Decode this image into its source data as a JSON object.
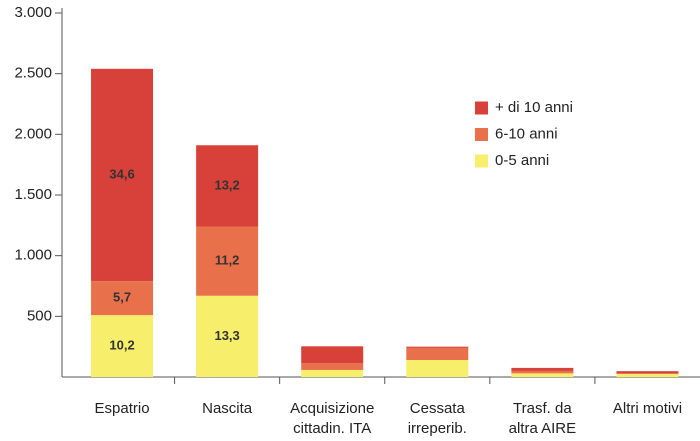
{
  "chart_data": {
    "type": "stacked-bar",
    "categories": [
      [
        "Espatrio"
      ],
      [
        "Nascita"
      ],
      [
        "Acquisizione",
        "cittadin. ITA"
      ],
      [
        "Cessata",
        "irreperib."
      ],
      [
        "Trasf. da",
        "altra AIRE"
      ],
      [
        "Altri motivi"
      ]
    ],
    "series": [
      {
        "name": "0-5 anni",
        "color": "#f7ee6b",
        "values": [
          510,
          670,
          58,
          140,
          30,
          25
        ],
        "shares": [
          10.2,
          13.3,
          null,
          null,
          null,
          null
        ],
        "share_labels": [
          "10,2",
          "13,3",
          null,
          null,
          null,
          null
        ]
      },
      {
        "name": "6-10 anni",
        "color": "#e8704a",
        "values": [
          280,
          570,
          55,
          100,
          20,
          8
        ],
        "shares": [
          5.7,
          11.2,
          null,
          null,
          null,
          null
        ],
        "share_labels": [
          "5,7",
          "11,2",
          null,
          null,
          null,
          null
        ]
      },
      {
        "name": "+ di 10 anni",
        "color": "#d8403a",
        "values": [
          1750,
          670,
          140,
          10,
          25,
          15
        ],
        "shares": [
          34.6,
          13.2,
          null,
          null,
          null,
          null
        ],
        "share_labels": [
          "34,6",
          "13,2",
          null,
          null,
          null,
          null
        ]
      }
    ],
    "ylim": [
      0,
      3000
    ],
    "yticks": [
      500,
      {
        "value": 1000,
        "label": "1.000"
      },
      {
        "value": 1500,
        "label": "1.500"
      },
      {
        "value": 2000,
        "label": "2.000"
      },
      {
        "value": 2500,
        "label": "2.500"
      },
      {
        "value": 3000,
        "label": "3.000"
      }
    ],
    "legend": "upper-right"
  }
}
